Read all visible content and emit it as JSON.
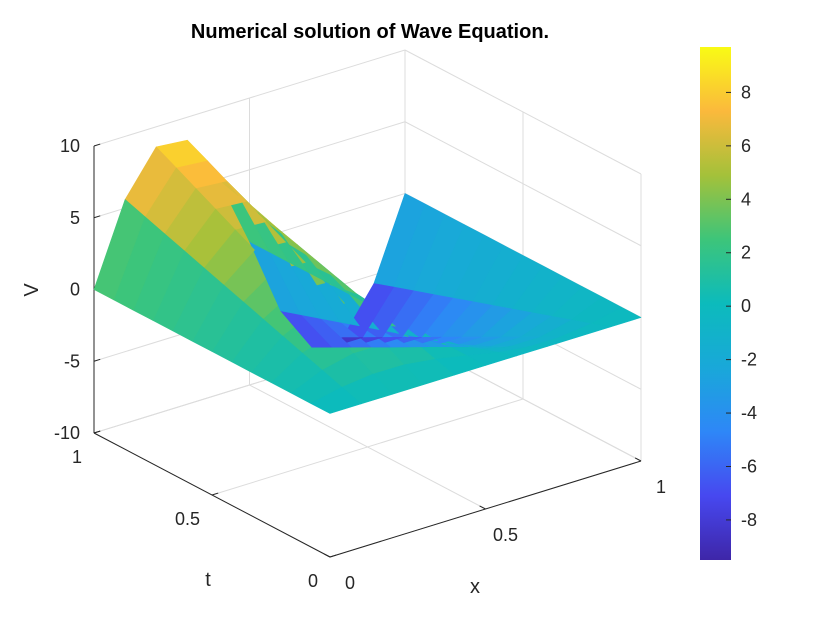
{
  "chart_data": {
    "type": "surface",
    "title": "Numerical solution of Wave Equation.",
    "xlabel": "x",
    "ylabel": "t",
    "zlabel": "V",
    "x_ticks": [
      "0",
      "0.5",
      "1"
    ],
    "t_ticks": [
      "0",
      "0.5",
      "1"
    ],
    "z_ticks": [
      "-10",
      "-5",
      "0",
      "5",
      "10"
    ],
    "xlim": [
      0,
      1
    ],
    "tlim": [
      0,
      1
    ],
    "zlim": [
      -10,
      10
    ],
    "grid": true,
    "colormap": "parula",
    "colorbar": {
      "position": "right",
      "range": [
        -9.5,
        9.7
      ],
      "ticks": [
        "8",
        "6",
        "4",
        "2",
        "0",
        "-2",
        "-4",
        "-6",
        "-8"
      ],
      "tick_values": [
        8,
        6,
        4,
        2,
        0,
        -2,
        -4,
        -6,
        -8
      ]
    },
    "x": [
      0,
      0.1,
      0.2,
      0.3,
      0.4,
      0.5,
      0.6,
      0.7,
      0.8,
      0.9,
      1
    ],
    "t": [
      0,
      1
    ],
    "z": [
      [
        0,
        0,
        0,
        0,
        0,
        0,
        0,
        0,
        0,
        0,
        0
      ],
      [
        0,
        5.6,
        8.6,
        8.4,
        5.0,
        0,
        -5.5,
        -8.7,
        -8.7,
        -5.6,
        0
      ]
    ]
  }
}
